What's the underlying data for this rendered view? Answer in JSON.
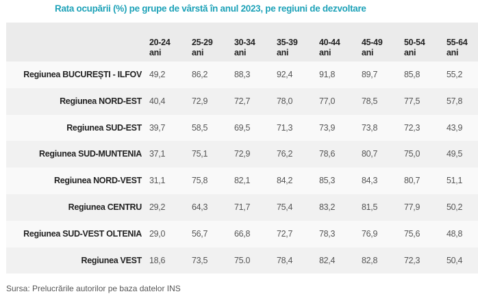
{
  "title": "Rata ocupării (%) pe grupe de vârstă în anul 2023, pe regiuni de dezvoltare",
  "columns": [
    {
      "l1": "20-24",
      "l2": "ani"
    },
    {
      "l1": "25-29",
      "l2": "ani"
    },
    {
      "l1": "30-34",
      "l2": "ani"
    },
    {
      "l1": "35-39",
      "l2": "ani"
    },
    {
      "l1": "40-44",
      "l2": "ani"
    },
    {
      "l1": "45-49",
      "l2": "ani"
    },
    {
      "l1": "50-54",
      "l2": "ani"
    },
    {
      "l1": "55-64",
      "l2": "ani"
    }
  ],
  "rows": [
    {
      "label": "Regiunea BUCUREȘTI - ILFOV",
      "values": [
        "49,2",
        "86,2",
        "88,3",
        "92,4",
        "91,8",
        "89,7",
        "85,8",
        "55,2"
      ]
    },
    {
      "label": "Regiunea NORD-EST",
      "values": [
        "40,4",
        "72,9",
        "72,7",
        "78,0",
        "77,0",
        "78,5",
        "77,5",
        "57,8"
      ]
    },
    {
      "label": "Regiunea SUD-EST",
      "values": [
        "39,7",
        "58,5",
        "69,5",
        "71,3",
        "73,9",
        "73,8",
        "72,3",
        "43,9"
      ]
    },
    {
      "label": "Regiunea SUD-MUNTENIA",
      "values": [
        "37,1",
        "75,1",
        "72,9",
        "76,2",
        "78,6",
        "80,7",
        "75,0",
        "49,5"
      ]
    },
    {
      "label": "Regiunea NORD-VEST",
      "values": [
        "31,1",
        "75,8",
        "82,1",
        "84,2",
        "85,3",
        "84,3",
        "80,7",
        "51,1"
      ]
    },
    {
      "label": "Regiunea CENTRU",
      "values": [
        "29,2",
        "64,3",
        "71,7",
        "75,4",
        "83,2",
        "81,5",
        "77,9",
        "50,2"
      ]
    },
    {
      "label": "Regiunea SUD-VEST OLTENIA",
      "values": [
        "29,0",
        "56,7",
        "66,8",
        "72,7",
        "78,3",
        "76,9",
        "75,6",
        "48,8"
      ]
    },
    {
      "label": "Regiunea VEST",
      "values": [
        "18,6",
        "73,5",
        "75.0",
        "78,4",
        "82,4",
        "82,8",
        "72,3",
        "50,4"
      ]
    }
  ],
  "source": "Sursa: Prelucrările autorilor pe baza datelor INS"
}
